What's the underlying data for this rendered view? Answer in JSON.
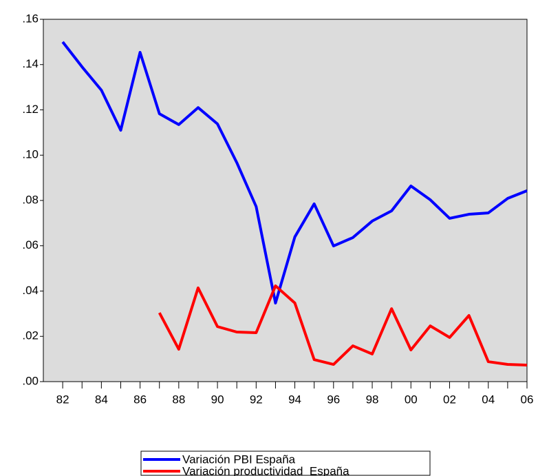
{
  "chart_data": {
    "type": "line",
    "categories": [
      "82",
      null,
      "84",
      null,
      "86",
      null,
      "88",
      null,
      "90",
      null,
      "92",
      null,
      "94",
      null,
      "96",
      null,
      "98",
      null,
      "00",
      null,
      "02",
      null,
      "04",
      null,
      "06"
    ],
    "series": [
      {
        "name": "Variación PBI España",
        "color": "#0000ff",
        "values": [
          0.15,
          0.139,
          0.1287,
          0.111,
          0.1454,
          0.1183,
          0.1135,
          0.121,
          0.1138,
          0.0967,
          0.0773,
          0.0347,
          0.0639,
          0.0785,
          0.0599,
          0.0636,
          0.0709,
          0.0754,
          0.0864,
          0.0803,
          0.0721,
          0.0739,
          0.0745,
          0.0809,
          0.0843
        ]
      },
      {
        "name": "Variación productividad  España",
        "color": "#ff0000",
        "values": [
          null,
          null,
          null,
          null,
          null,
          0.0304,
          0.0143,
          0.0414,
          0.0243,
          0.0219,
          0.0216,
          0.0423,
          0.0347,
          0.0097,
          0.0076,
          0.0158,
          0.0122,
          0.0322,
          0.014,
          0.0246,
          0.0195,
          0.0292,
          0.0088,
          0.0076,
          0.0073
        ]
      }
    ],
    "ylim": [
      0,
      0.16
    ],
    "yticks": [
      {
        "value": 0,
        "label": ".00"
      },
      {
        "value": 0.02,
        "label": ".02"
      },
      {
        "value": 0.04,
        "label": ".04"
      },
      {
        "value": 0.06,
        "label": ".06"
      },
      {
        "value": 0.08,
        "label": ".08"
      },
      {
        "value": 0.1,
        "label": ".10"
      },
      {
        "value": 0.12,
        "label": ".12"
      },
      {
        "value": 0.14,
        "label": ".14"
      },
      {
        "value": 0.16,
        "label": ".16"
      }
    ],
    "background": "#dcdcdc"
  }
}
